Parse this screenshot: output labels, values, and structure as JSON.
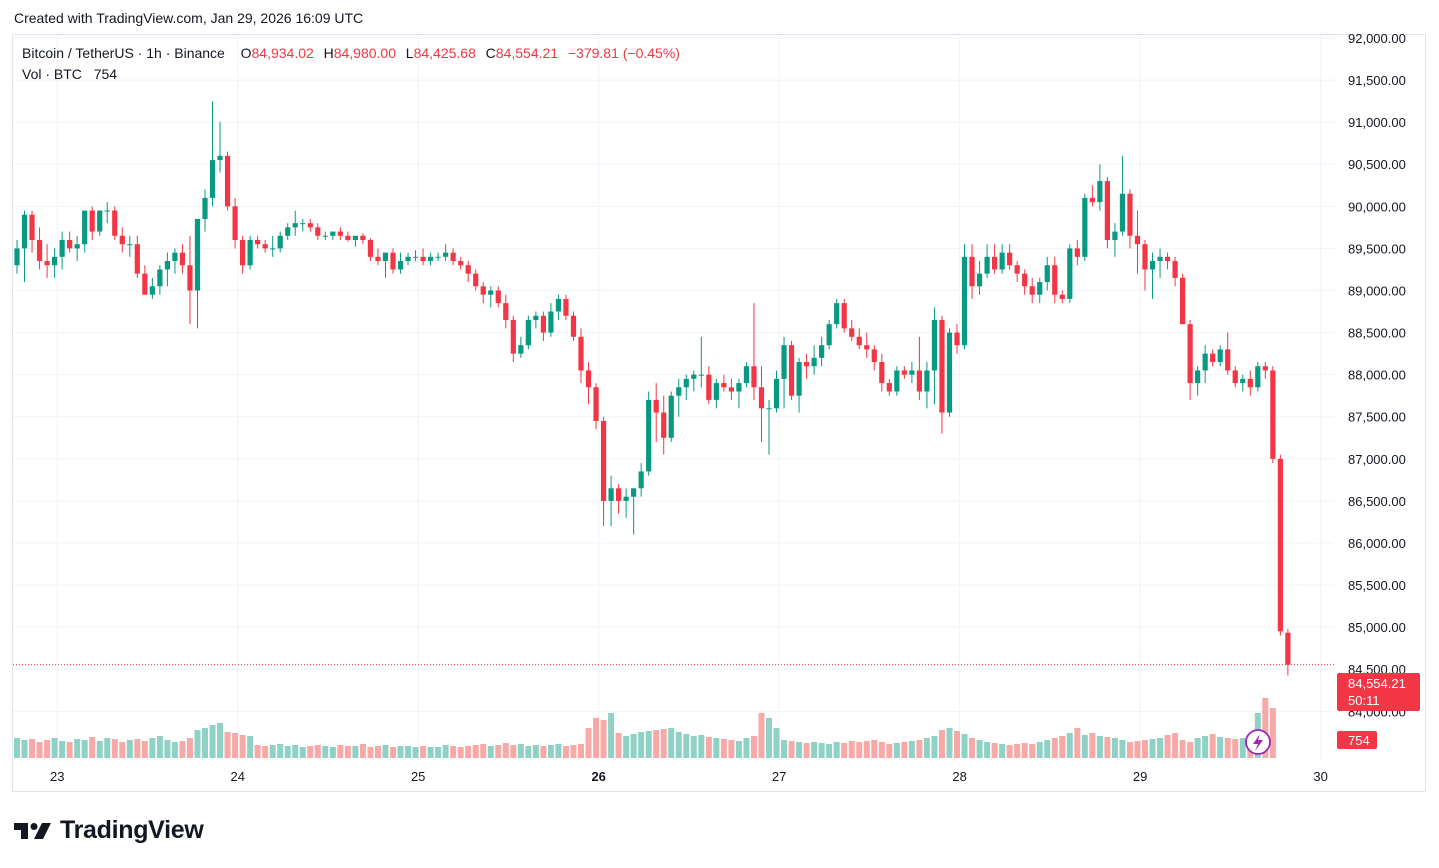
{
  "header": {
    "caption": "Created with TradingView.com, Jan 29, 2026 16:09 UTC"
  },
  "legend": {
    "symbol": "Bitcoin / TetherUS · 1h · Binance",
    "o_label": "O",
    "o_value": "84,934.02",
    "h_label": "H",
    "h_value": "84,980.00",
    "l_label": "L",
    "l_value": "84,425.68",
    "c_label": "C",
    "c_value": "84,554.21",
    "change": "−379.81 (−0.45%)",
    "vol_label": "Vol · BTC",
    "vol_value": "754"
  },
  "price_tag": {
    "price": "84,554.21",
    "countdown": "50:11"
  },
  "volume_tag": "754",
  "footer": {
    "brand": "TradingView"
  },
  "colors": {
    "up": "#089981",
    "down": "#f23645",
    "up_vol": "#8fd1c5",
    "down_vol": "#f7a9a8",
    "grid": "#f0f3fa"
  },
  "chart_data": {
    "type": "candlestick",
    "title": "Bitcoin / TetherUS · 1h · Binance",
    "y_ticks": [
      "84,000.00",
      "84,500.00",
      "85,000.00",
      "85,500.00",
      "86,000.00",
      "86,500.00",
      "87,000.00",
      "87,500.00",
      "88,000.00",
      "88,500.00",
      "89,000.00",
      "89,500.00",
      "90,000.00",
      "90,500.00",
      "91,000.00",
      "91,500.00",
      "92,000.00"
    ],
    "y_tick_values": [
      84000,
      84500,
      85000,
      85500,
      86000,
      86500,
      87000,
      87500,
      88000,
      88500,
      89000,
      89500,
      90000,
      90500,
      91000,
      91500,
      92000
    ],
    "ylim": [
      83790,
      92000
    ],
    "x_ticks": [
      "23",
      "24",
      "25",
      "26",
      "27",
      "28",
      "29",
      "30"
    ],
    "x_tick_bold": [
      false,
      false,
      false,
      true,
      false,
      false,
      false,
      false
    ],
    "last_price": 84554.21,
    "last_volume": 754,
    "candles": [
      {
        "o": 89300,
        "h": 89600,
        "l": 89200,
        "c": 89500
      },
      {
        "o": 89500,
        "h": 89950,
        "l": 89100,
        "c": 89900
      },
      {
        "o": 89900,
        "h": 89950,
        "l": 89450,
        "c": 89600
      },
      {
        "o": 89600,
        "h": 89750,
        "l": 89250,
        "c": 89350
      },
      {
        "o": 89350,
        "h": 89550,
        "l": 89150,
        "c": 89300
      },
      {
        "o": 89300,
        "h": 89500,
        "l": 89150,
        "c": 89400
      },
      {
        "o": 89400,
        "h": 89700,
        "l": 89250,
        "c": 89600
      },
      {
        "o": 89600,
        "h": 89700,
        "l": 89450,
        "c": 89500
      },
      {
        "o": 89500,
        "h": 89650,
        "l": 89350,
        "c": 89550
      },
      {
        "o": 89550,
        "h": 89950,
        "l": 89450,
        "c": 89950
      },
      {
        "o": 89950,
        "h": 90000,
        "l": 89600,
        "c": 89700
      },
      {
        "o": 89700,
        "h": 89950,
        "l": 89650,
        "c": 89950
      },
      {
        "o": 89950,
        "h": 90050,
        "l": 89800,
        "c": 89950
      },
      {
        "o": 89950,
        "h": 90000,
        "l": 89600,
        "c": 89650
      },
      {
        "o": 89650,
        "h": 89750,
        "l": 89450,
        "c": 89550
      },
      {
        "o": 89550,
        "h": 89650,
        "l": 89400,
        "c": 89550
      },
      {
        "o": 89550,
        "h": 89650,
        "l": 89150,
        "c": 89200
      },
      {
        "o": 89200,
        "h": 89300,
        "l": 88950,
        "c": 88950
      },
      {
        "o": 88950,
        "h": 89150,
        "l": 88900,
        "c": 89050
      },
      {
        "o": 89050,
        "h": 89300,
        "l": 88950,
        "c": 89250
      },
      {
        "o": 89250,
        "h": 89450,
        "l": 89050,
        "c": 89350
      },
      {
        "o": 89350,
        "h": 89500,
        "l": 89200,
        "c": 89450
      },
      {
        "o": 89450,
        "h": 89550,
        "l": 89200,
        "c": 89300
      },
      {
        "o": 89300,
        "h": 89650,
        "l": 88600,
        "c": 89000
      },
      {
        "o": 89000,
        "h": 89850,
        "l": 88550,
        "c": 89850
      },
      {
        "o": 89850,
        "h": 90200,
        "l": 89700,
        "c": 90100
      },
      {
        "o": 90100,
        "h": 91250,
        "l": 90000,
        "c": 90550
      },
      {
        "o": 90550,
        "h": 91000,
        "l": 90400,
        "c": 90600
      },
      {
        "o": 90600,
        "h": 90650,
        "l": 89950,
        "c": 90000
      },
      {
        "o": 90000,
        "h": 90100,
        "l": 89500,
        "c": 89600
      },
      {
        "o": 89600,
        "h": 89650,
        "l": 89200,
        "c": 89300
      },
      {
        "o": 89300,
        "h": 89650,
        "l": 89250,
        "c": 89600
      },
      {
        "o": 89600,
        "h": 89650,
        "l": 89500,
        "c": 89550
      },
      {
        "o": 89550,
        "h": 89600,
        "l": 89450,
        "c": 89500
      },
      {
        "o": 89500,
        "h": 89650,
        "l": 89400,
        "c": 89500
      },
      {
        "o": 89500,
        "h": 89700,
        "l": 89450,
        "c": 89650
      },
      {
        "o": 89650,
        "h": 89800,
        "l": 89600,
        "c": 89750
      },
      {
        "o": 89750,
        "h": 89950,
        "l": 89650,
        "c": 89800
      },
      {
        "o": 89800,
        "h": 89850,
        "l": 89700,
        "c": 89800
      },
      {
        "o": 89800,
        "h": 89850,
        "l": 89700,
        "c": 89750
      },
      {
        "o": 89750,
        "h": 89800,
        "l": 89600,
        "c": 89650
      },
      {
        "o": 89650,
        "h": 89700,
        "l": 89600,
        "c": 89650
      },
      {
        "o": 89650,
        "h": 89700,
        "l": 89600,
        "c": 89700
      },
      {
        "o": 89700,
        "h": 89750,
        "l": 89600,
        "c": 89650
      },
      {
        "o": 89650,
        "h": 89700,
        "l": 89580,
        "c": 89600
      },
      {
        "o": 89600,
        "h": 89650,
        "l": 89520,
        "c": 89650
      },
      {
        "o": 89650,
        "h": 89680,
        "l": 89550,
        "c": 89600
      },
      {
        "o": 89600,
        "h": 89620,
        "l": 89350,
        "c": 89400
      },
      {
        "o": 89400,
        "h": 89500,
        "l": 89300,
        "c": 89350
      },
      {
        "o": 89350,
        "h": 89450,
        "l": 89150,
        "c": 89450
      },
      {
        "o": 89450,
        "h": 89500,
        "l": 89200,
        "c": 89250
      },
      {
        "o": 89250,
        "h": 89450,
        "l": 89200,
        "c": 89350
      },
      {
        "o": 89350,
        "h": 89450,
        "l": 89300,
        "c": 89400
      },
      {
        "o": 89400,
        "h": 89480,
        "l": 89350,
        "c": 89400
      },
      {
        "o": 89400,
        "h": 89500,
        "l": 89300,
        "c": 89350
      },
      {
        "o": 89350,
        "h": 89450,
        "l": 89300,
        "c": 89400
      },
      {
        "o": 89400,
        "h": 89450,
        "l": 89350,
        "c": 89400
      },
      {
        "o": 89400,
        "h": 89550,
        "l": 89350,
        "c": 89450
      },
      {
        "o": 89450,
        "h": 89500,
        "l": 89300,
        "c": 89350
      },
      {
        "o": 89350,
        "h": 89400,
        "l": 89250,
        "c": 89300
      },
      {
        "o": 89300,
        "h": 89350,
        "l": 89100,
        "c": 89200
      },
      {
        "o": 89200,
        "h": 89250,
        "l": 89000,
        "c": 89050
      },
      {
        "o": 89050,
        "h": 89100,
        "l": 88850,
        "c": 88950
      },
      {
        "o": 88950,
        "h": 89050,
        "l": 88800,
        "c": 89000
      },
      {
        "o": 89000,
        "h": 89050,
        "l": 88800,
        "c": 88850
      },
      {
        "o": 88850,
        "h": 88950,
        "l": 88550,
        "c": 88650
      },
      {
        "o": 88650,
        "h": 88700,
        "l": 88150,
        "c": 88250
      },
      {
        "o": 88250,
        "h": 88450,
        "l": 88200,
        "c": 88350
      },
      {
        "o": 88350,
        "h": 88700,
        "l": 88300,
        "c": 88650
      },
      {
        "o": 88650,
        "h": 88750,
        "l": 88550,
        "c": 88700
      },
      {
        "o": 88700,
        "h": 88750,
        "l": 88400,
        "c": 88500
      },
      {
        "o": 88500,
        "h": 88850,
        "l": 88450,
        "c": 88750
      },
      {
        "o": 88750,
        "h": 88950,
        "l": 88650,
        "c": 88900
      },
      {
        "o": 88900,
        "h": 88950,
        "l": 88650,
        "c": 88700
      },
      {
        "o": 88700,
        "h": 88750,
        "l": 88400,
        "c": 88450
      },
      {
        "o": 88450,
        "h": 88550,
        "l": 87900,
        "c": 88050
      },
      {
        "o": 88050,
        "h": 88150,
        "l": 87650,
        "c": 87850
      },
      {
        "o": 87850,
        "h": 87900,
        "l": 87350,
        "c": 87450
      },
      {
        "o": 87450,
        "h": 87500,
        "l": 86200,
        "c": 86500
      },
      {
        "o": 86500,
        "h": 86800,
        "l": 86200,
        "c": 86650
      },
      {
        "o": 86650,
        "h": 86700,
        "l": 86350,
        "c": 86500
      },
      {
        "o": 86500,
        "h": 86650,
        "l": 86300,
        "c": 86550
      },
      {
        "o": 86550,
        "h": 86650,
        "l": 86100,
        "c": 86650
      },
      {
        "o": 86650,
        "h": 86950,
        "l": 86550,
        "c": 86850
      },
      {
        "o": 86850,
        "h": 87800,
        "l": 86800,
        "c": 87700
      },
      {
        "o": 87700,
        "h": 87900,
        "l": 87200,
        "c": 87550
      },
      {
        "o": 87550,
        "h": 87750,
        "l": 87050,
        "c": 87250
      },
      {
        "o": 87250,
        "h": 87800,
        "l": 87200,
        "c": 87750
      },
      {
        "o": 87750,
        "h": 87950,
        "l": 87500,
        "c": 87850
      },
      {
        "o": 87850,
        "h": 88000,
        "l": 87700,
        "c": 87950
      },
      {
        "o": 87950,
        "h": 88050,
        "l": 87800,
        "c": 88000
      },
      {
        "o": 88000,
        "h": 88450,
        "l": 87850,
        "c": 88000
      },
      {
        "o": 88000,
        "h": 88100,
        "l": 87650,
        "c": 87700
      },
      {
        "o": 87700,
        "h": 87950,
        "l": 87600,
        "c": 87900
      },
      {
        "o": 87900,
        "h": 88000,
        "l": 87800,
        "c": 87850
      },
      {
        "o": 87850,
        "h": 87950,
        "l": 87700,
        "c": 87800
      },
      {
        "o": 87800,
        "h": 87950,
        "l": 87600,
        "c": 87900
      },
      {
        "o": 87900,
        "h": 88150,
        "l": 87850,
        "c": 88100
      },
      {
        "o": 88100,
        "h": 88850,
        "l": 87700,
        "c": 87850
      },
      {
        "o": 87850,
        "h": 88100,
        "l": 87200,
        "c": 87600
      },
      {
        "o": 87600,
        "h": 87700,
        "l": 87050,
        "c": 87600
      },
      {
        "o": 87600,
        "h": 88050,
        "l": 87550,
        "c": 87950
      },
      {
        "o": 87950,
        "h": 88450,
        "l": 87600,
        "c": 88350
      },
      {
        "o": 88350,
        "h": 88400,
        "l": 87700,
        "c": 87750
      },
      {
        "o": 87750,
        "h": 88200,
        "l": 87550,
        "c": 88150
      },
      {
        "o": 88150,
        "h": 88250,
        "l": 87950,
        "c": 88100
      },
      {
        "o": 88100,
        "h": 88350,
        "l": 88000,
        "c": 88200
      },
      {
        "o": 88200,
        "h": 88450,
        "l": 88100,
        "c": 88350
      },
      {
        "o": 88350,
        "h": 88650,
        "l": 88300,
        "c": 88600
      },
      {
        "o": 88600,
        "h": 88900,
        "l": 88550,
        "c": 88850
      },
      {
        "o": 88850,
        "h": 88900,
        "l": 88500,
        "c": 88550
      },
      {
        "o": 88550,
        "h": 88650,
        "l": 88400,
        "c": 88450
      },
      {
        "o": 88450,
        "h": 88550,
        "l": 88300,
        "c": 88350
      },
      {
        "o": 88350,
        "h": 88500,
        "l": 88200,
        "c": 88300
      },
      {
        "o": 88300,
        "h": 88350,
        "l": 88050,
        "c": 88150
      },
      {
        "o": 88150,
        "h": 88250,
        "l": 87800,
        "c": 87900
      },
      {
        "o": 87900,
        "h": 87950,
        "l": 87750,
        "c": 87800
      },
      {
        "o": 87800,
        "h": 88100,
        "l": 87750,
        "c": 88050
      },
      {
        "o": 88050,
        "h": 88100,
        "l": 87950,
        "c": 88000
      },
      {
        "o": 88000,
        "h": 88150,
        "l": 87900,
        "c": 88050
      },
      {
        "o": 88050,
        "h": 88450,
        "l": 87700,
        "c": 87800
      },
      {
        "o": 87800,
        "h": 88150,
        "l": 87600,
        "c": 88050
      },
      {
        "o": 88050,
        "h": 88800,
        "l": 87650,
        "c": 88650
      },
      {
        "o": 88650,
        "h": 88700,
        "l": 87300,
        "c": 87550
      },
      {
        "o": 87550,
        "h": 88550,
        "l": 87500,
        "c": 88500
      },
      {
        "o": 88500,
        "h": 88600,
        "l": 88250,
        "c": 88350
      },
      {
        "o": 88350,
        "h": 89550,
        "l": 88300,
        "c": 89400
      },
      {
        "o": 89400,
        "h": 89550,
        "l": 88900,
        "c": 89050
      },
      {
        "o": 89050,
        "h": 89350,
        "l": 88950,
        "c": 89200
      },
      {
        "o": 89200,
        "h": 89550,
        "l": 89150,
        "c": 89400
      },
      {
        "o": 89400,
        "h": 89550,
        "l": 89200,
        "c": 89250
      },
      {
        "o": 89250,
        "h": 89550,
        "l": 89200,
        "c": 89450
      },
      {
        "o": 89450,
        "h": 89550,
        "l": 89250,
        "c": 89300
      },
      {
        "o": 89300,
        "h": 89350,
        "l": 89100,
        "c": 89200
      },
      {
        "o": 89200,
        "h": 89250,
        "l": 88950,
        "c": 89050
      },
      {
        "o": 89050,
        "h": 89150,
        "l": 88850,
        "c": 88950
      },
      {
        "o": 88950,
        "h": 89150,
        "l": 88850,
        "c": 89100
      },
      {
        "o": 89100,
        "h": 89400,
        "l": 89000,
        "c": 89300
      },
      {
        "o": 89300,
        "h": 89400,
        "l": 88850,
        "c": 88950
      },
      {
        "o": 88950,
        "h": 89000,
        "l": 88850,
        "c": 88900
      },
      {
        "o": 88900,
        "h": 89550,
        "l": 88850,
        "c": 89500
      },
      {
        "o": 89500,
        "h": 89600,
        "l": 89300,
        "c": 89400
      },
      {
        "o": 89400,
        "h": 90150,
        "l": 89350,
        "c": 90100
      },
      {
        "o": 90100,
        "h": 90250,
        "l": 90000,
        "c": 90050
      },
      {
        "o": 90050,
        "h": 90500,
        "l": 89950,
        "c": 90300
      },
      {
        "o": 90300,
        "h": 90350,
        "l": 89500,
        "c": 89600
      },
      {
        "o": 89600,
        "h": 89800,
        "l": 89400,
        "c": 89700
      },
      {
        "o": 89700,
        "h": 90600,
        "l": 89650,
        "c": 90150
      },
      {
        "o": 90150,
        "h": 90200,
        "l": 89500,
        "c": 89650
      },
      {
        "o": 89650,
        "h": 89950,
        "l": 89200,
        "c": 89550
      },
      {
        "o": 89550,
        "h": 89600,
        "l": 89000,
        "c": 89250
      },
      {
        "o": 89250,
        "h": 89450,
        "l": 88900,
        "c": 89350
      },
      {
        "o": 89350,
        "h": 89500,
        "l": 89150,
        "c": 89400
      },
      {
        "o": 89400,
        "h": 89450,
        "l": 89250,
        "c": 89350
      },
      {
        "o": 89350,
        "h": 89400,
        "l": 89050,
        "c": 89150
      },
      {
        "o": 89150,
        "h": 89200,
        "l": 88600,
        "c": 88600
      },
      {
        "o": 88600,
        "h": 88650,
        "l": 87700,
        "c": 87900
      },
      {
        "o": 87900,
        "h": 88100,
        "l": 87750,
        "c": 88050
      },
      {
        "o": 88050,
        "h": 88350,
        "l": 87900,
        "c": 88250
      },
      {
        "o": 88250,
        "h": 88300,
        "l": 88100,
        "c": 88150
      },
      {
        "o": 88150,
        "h": 88350,
        "l": 88100,
        "c": 88300
      },
      {
        "o": 88300,
        "h": 88500,
        "l": 88000,
        "c": 88050
      },
      {
        "o": 88050,
        "h": 88100,
        "l": 87850,
        "c": 87900
      },
      {
        "o": 87900,
        "h": 88000,
        "l": 87800,
        "c": 87950
      },
      {
        "o": 87950,
        "h": 88050,
        "l": 87750,
        "c": 87850
      },
      {
        "o": 87850,
        "h": 88150,
        "l": 87800,
        "c": 88100
      },
      {
        "o": 88100,
        "h": 88150,
        "l": 87950,
        "c": 88050
      },
      {
        "o": 88050,
        "h": 88100,
        "l": 86950,
        "c": 87000
      },
      {
        "o": 87000,
        "h": 87050,
        "l": 84900,
        "c": 84950
      },
      {
        "o": 84934.02,
        "h": 84980,
        "l": 84425.68,
        "c": 84554.21
      }
    ],
    "volumes": [
      20,
      18,
      19,
      16,
      18,
      20,
      17,
      16,
      19,
      18,
      21,
      17,
      20,
      19,
      16,
      18,
      19,
      17,
      20,
      22,
      18,
      16,
      17,
      20,
      28,
      30,
      33,
      35,
      26,
      25,
      23,
      22,
      13,
      12,
      13,
      14,
      12,
      13,
      11,
      12,
      13,
      12,
      11,
      13,
      12,
      12,
      14,
      11,
      12,
      13,
      11,
      12,
      12,
      11,
      12,
      11,
      11,
      13,
      12,
      11,
      12,
      13,
      14,
      12,
      13,
      15,
      13,
      14,
      12,
      13,
      12,
      13,
      14,
      12,
      13,
      14,
      30,
      40,
      38,
      45,
      25,
      22,
      24,
      26,
      27,
      28,
      29,
      30,
      26,
      24,
      22,
      23,
      21,
      20,
      19,
      18,
      17,
      20,
      22,
      45,
      40,
      30,
      18,
      17,
      16,
      15,
      16,
      15,
      14,
      16,
      15,
      17,
      16,
      17,
      18,
      16,
      14,
      15,
      16,
      17,
      18,
      20,
      22,
      28,
      30,
      27,
      24,
      20,
      18,
      16,
      15,
      14,
      13,
      14,
      15,
      14,
      16,
      18,
      20,
      22,
      25,
      30,
      23,
      25,
      22,
      21,
      20,
      18,
      16,
      17,
      18,
      19,
      20,
      23,
      25,
      18,
      16,
      20,
      22,
      24,
      21,
      20,
      19,
      20,
      22,
      45,
      60,
      50
    ]
  }
}
